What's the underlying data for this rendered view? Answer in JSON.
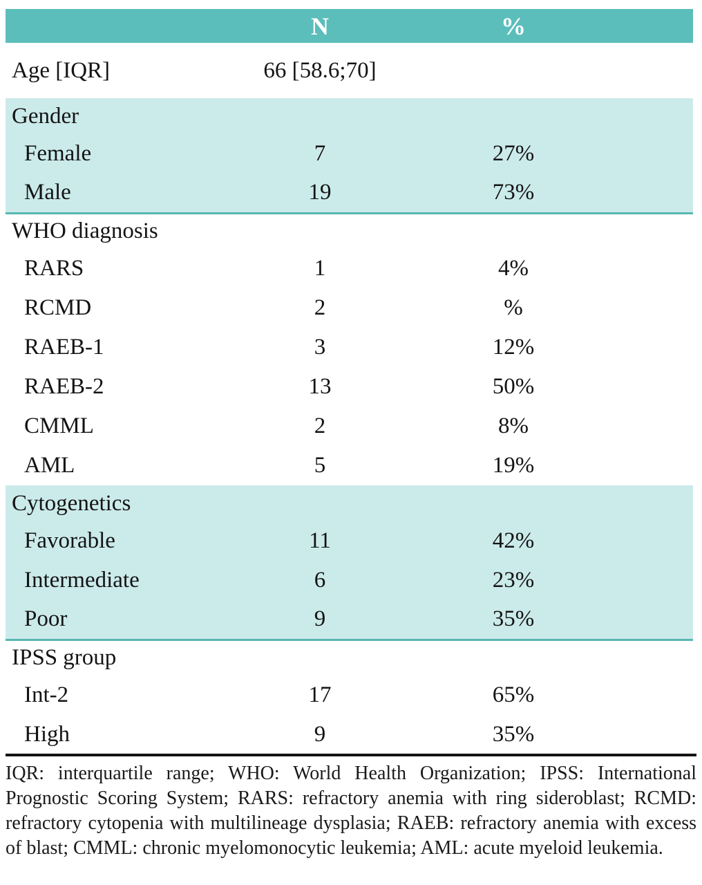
{
  "colors": {
    "header_bg": "#5cbebb",
    "header_text": "#ffffff",
    "shaded_row_bg": "#cbebea",
    "section_rule": "#57b6b2",
    "footnote_rule": "#141414",
    "body_text": "#141414"
  },
  "table": {
    "header": {
      "label": "",
      "n": "N",
      "pct": "%"
    },
    "sections": [
      {
        "name": "age",
        "shaded": false,
        "rows": [
          {
            "label": "Age [IQR]",
            "n": "66 [58.6;70]",
            "pct": "",
            "indent": false,
            "kind": "age"
          }
        ]
      },
      {
        "name": "gender",
        "shaded": true,
        "rows": [
          {
            "label": "Gender",
            "n": "",
            "pct": "",
            "indent": false,
            "kind": "label"
          },
          {
            "label": "Female",
            "n": "7",
            "pct": "27%",
            "indent": true,
            "kind": "item"
          },
          {
            "label": "Male",
            "n": "19",
            "pct": "73%",
            "indent": true,
            "kind": "item"
          }
        ]
      },
      {
        "name": "who-diagnosis",
        "shaded": false,
        "rows": [
          {
            "label": "WHO diagnosis",
            "n": "",
            "pct": "",
            "indent": false,
            "kind": "label"
          },
          {
            "label": "RARS",
            "n": "1",
            "pct": "4%",
            "indent": true,
            "kind": "item"
          },
          {
            "label": "RCMD",
            "n": "2",
            "pct": "%",
            "indent": true,
            "kind": "item"
          },
          {
            "label": "RAEB-1",
            "n": "3",
            "pct": "12%",
            "indent": true,
            "kind": "item"
          },
          {
            "label": "RAEB-2",
            "n": "13",
            "pct": "50%",
            "indent": true,
            "kind": "item"
          },
          {
            "label": "CMML",
            "n": "2",
            "pct": "8%",
            "indent": true,
            "kind": "item"
          },
          {
            "label": "AML",
            "n": "5",
            "pct": "19%",
            "indent": true,
            "kind": "item"
          }
        ]
      },
      {
        "name": "cytogenetics",
        "shaded": true,
        "rows": [
          {
            "label": "Cytogenetics",
            "n": "",
            "pct": "",
            "indent": false,
            "kind": "label"
          },
          {
            "label": "Favorable",
            "n": "11",
            "pct": "42%",
            "indent": true,
            "kind": "item"
          },
          {
            "label": "Intermediate",
            "n": "6",
            "pct": "23%",
            "indent": true,
            "kind": "item"
          },
          {
            "label": "Poor",
            "n": "9",
            "pct": "35%",
            "indent": true,
            "kind": "item"
          }
        ]
      },
      {
        "name": "ipss-group",
        "shaded": false,
        "rows": [
          {
            "label": "IPSS group",
            "n": "",
            "pct": "",
            "indent": false,
            "kind": "label"
          },
          {
            "label": "Int-2",
            "n": "17",
            "pct": "65%",
            "indent": true,
            "kind": "item"
          },
          {
            "label": "High",
            "n": "9",
            "pct": "35%",
            "indent": true,
            "kind": "item"
          }
        ]
      }
    ]
  },
  "footnote": "IQR: interquartile range; WHO: World Health Organization; IPSS: International Prognostic Scoring System; RARS: refractory anemia with ring sideroblast; RCMD: refractory cytopenia with multilineage dysplasia; RAEB: refractory anemia with excess of blast; CMML: chronic myelomonocytic leukemia; AML: acute myeloid leukemia."
}
